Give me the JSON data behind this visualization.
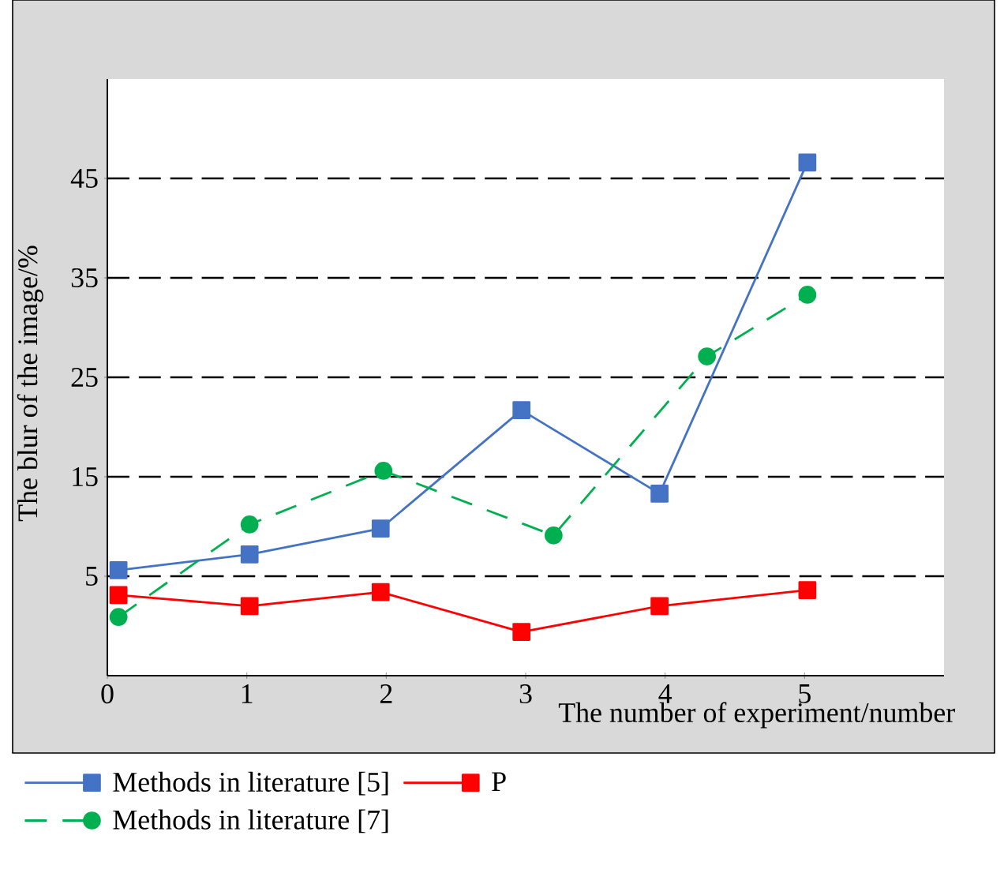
{
  "chart_data": {
    "type": "line",
    "xlabel": "The number of experiment/number",
    "ylabel": "The blur of the image/%",
    "xlim": [
      0,
      6
    ],
    "ylim": [
      -5,
      55
    ],
    "xticks": [
      0,
      1,
      2,
      3,
      4,
      5
    ],
    "yticks": [
      5,
      15,
      25,
      35,
      45
    ],
    "grid": "y",
    "legend": "bottom",
    "series": [
      {
        "name": "Methods in literature [5]",
        "color": "#4472c4",
        "marker": "square",
        "line_style": "solid",
        "x": [
          0.08,
          1.02,
          1.96,
          2.97,
          3.96,
          5.02
        ],
        "values": [
          5.6,
          7.2,
          9.8,
          21.7,
          13.3,
          46.6
        ]
      },
      {
        "name": "P",
        "color": "#ff0000",
        "marker": "square",
        "line_style": "solid",
        "x": [
          0.08,
          1.02,
          1.96,
          2.97,
          3.96,
          5.02
        ],
        "values": [
          3.1,
          2.0,
          3.4,
          -0.6,
          2.0,
          3.6
        ]
      },
      {
        "name": "Methods in literature [7]",
        "color": "#00b050",
        "marker": "circle",
        "line_style": "dashed",
        "x": [
          0.08,
          1.02,
          1.98,
          3.2,
          4.3,
          5.02
        ],
        "values": [
          0.9,
          10.2,
          15.6,
          9.1,
          27.1,
          33.3
        ]
      }
    ]
  }
}
